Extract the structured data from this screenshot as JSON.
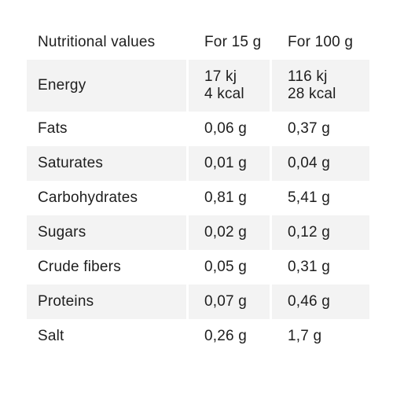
{
  "table": {
    "headers": {
      "name": "Nutritional values",
      "per_15g": "For 15 g",
      "per_100g": "For 100 g"
    },
    "rows": [
      {
        "name": "Energy",
        "per_15g": [
          "17 kj",
          "4 kcal"
        ],
        "per_100g": [
          "116 kj",
          "28 kcal"
        ],
        "shaded": true
      },
      {
        "name": "Fats",
        "per_15g": [
          "0,06 g"
        ],
        "per_100g": [
          "0,37 g"
        ],
        "shaded": false
      },
      {
        "name": "Saturates",
        "per_15g": [
          "0,01 g"
        ],
        "per_100g": [
          "0,04 g"
        ],
        "shaded": true
      },
      {
        "name": "Carbohydrates",
        "per_15g": [
          "0,81 g"
        ],
        "per_100g": [
          "5,41 g"
        ],
        "shaded": false
      },
      {
        "name": "Sugars",
        "per_15g": [
          "0,02 g"
        ],
        "per_100g": [
          "0,12 g"
        ],
        "shaded": true
      },
      {
        "name": "Crude fibers",
        "per_15g": [
          "0,05 g"
        ],
        "per_100g": [
          "0,31 g"
        ],
        "shaded": false
      },
      {
        "name": "Proteins",
        "per_15g": [
          "0,07 g"
        ],
        "per_100g": [
          "0,46 g"
        ],
        "shaded": true
      },
      {
        "name": "Salt",
        "per_15g": [
          "0,26 g"
        ],
        "per_100g": [
          "1,7 g"
        ],
        "shaded": false
      }
    ]
  },
  "colors": {
    "text": "#1e1e1e",
    "row_shade": "#f3f3f3",
    "background": "#ffffff"
  }
}
